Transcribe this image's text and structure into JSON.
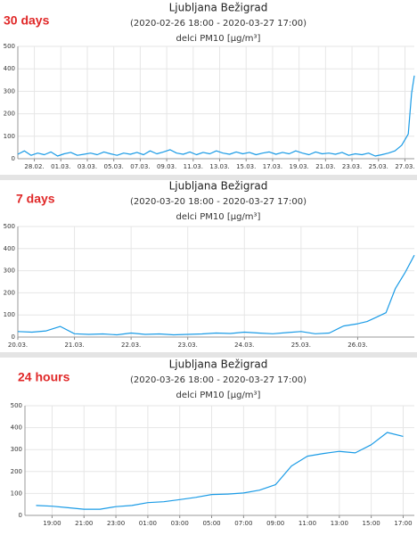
{
  "chart_data": [
    {
      "type": "line",
      "period_label": "30 days",
      "title": "Ljubljana Bežigrad",
      "subtitle": "(2020-02-26 18:00 - 2020-03-27 17:00)",
      "unit": "delci PM10 [µg/m³]",
      "color": "#1a9be6",
      "grid": true,
      "x": [
        0,
        12,
        24,
        36,
        48,
        60,
        72,
        84,
        96,
        108,
        120,
        132,
        144,
        156,
        168,
        180,
        192,
        204,
        216,
        228,
        240,
        252,
        264,
        276,
        288,
        300,
        312,
        324,
        336,
        348,
        360,
        372,
        384,
        396,
        408,
        420,
        432,
        444,
        456,
        468,
        480,
        492,
        504,
        516,
        528,
        540,
        552,
        564,
        576,
        588,
        600,
        612,
        624,
        636,
        648,
        660,
        672,
        684,
        696,
        708,
        714,
        719
      ],
      "values": [
        20,
        35,
        15,
        25,
        18,
        30,
        12,
        22,
        28,
        15,
        20,
        25,
        18,
        30,
        22,
        15,
        25,
        20,
        28,
        18,
        35,
        22,
        30,
        40,
        25,
        20,
        30,
        18,
        28,
        22,
        35,
        25,
        20,
        30,
        22,
        28,
        18,
        25,
        30,
        20,
        28,
        22,
        35,
        25,
        18,
        30,
        22,
        25,
        20,
        28,
        15,
        22,
        18,
        25,
        12,
        18,
        25,
        35,
        60,
        110,
        290,
        370
      ],
      "xlim": [
        0,
        719
      ],
      "xticks": [
        {
          "value": 30,
          "label": "28.02."
        },
        {
          "value": 78,
          "label": "01.03."
        },
        {
          "value": 126,
          "label": "03.03."
        },
        {
          "value": 174,
          "label": "05.03."
        },
        {
          "value": 222,
          "label": "07.03."
        },
        {
          "value": 270,
          "label": "09.03."
        },
        {
          "value": 318,
          "label": "11.03."
        },
        {
          "value": 366,
          "label": "13.03."
        },
        {
          "value": 414,
          "label": "15.03."
        },
        {
          "value": 462,
          "label": "17.03."
        },
        {
          "value": 510,
          "label": "19.03."
        },
        {
          "value": 558,
          "label": "21.03."
        },
        {
          "value": 606,
          "label": "23.03."
        },
        {
          "value": 654,
          "label": "25.03."
        },
        {
          "value": 702,
          "label": "27.03."
        }
      ],
      "ylim": [
        0,
        500
      ],
      "yticks": [
        0,
        100,
        200,
        300,
        400,
        500
      ]
    },
    {
      "type": "line",
      "period_label": "7 days",
      "title": "Ljubljana Bežigrad",
      "subtitle": "(2020-03-20 18:00 - 2020-03-27 17:00)",
      "unit": "delci PM10 [µg/m³]",
      "color": "#1a9be6",
      "grid": true,
      "x": [
        0,
        6,
        12,
        18,
        24,
        30,
        36,
        42,
        48,
        54,
        60,
        66,
        72,
        78,
        84,
        90,
        96,
        102,
        108,
        114,
        120,
        126,
        132,
        138,
        144,
        148,
        152,
        156,
        160,
        164,
        168
      ],
      "values": [
        25,
        22,
        28,
        48,
        15,
        12,
        14,
        10,
        18,
        12,
        14,
        10,
        12,
        14,
        18,
        16,
        22,
        18,
        15,
        20,
        25,
        15,
        18,
        50,
        60,
        70,
        90,
        110,
        220,
        290,
        370
      ],
      "xlim": [
        0,
        168
      ],
      "xticks": [
        {
          "value": 0,
          "label": "20.03."
        },
        {
          "value": 24,
          "label": "21.03."
        },
        {
          "value": 48,
          "label": "22.03."
        },
        {
          "value": 72,
          "label": "23.03."
        },
        {
          "value": 96,
          "label": "24.03."
        },
        {
          "value": 120,
          "label": "25.03."
        },
        {
          "value": 144,
          "label": "26.03."
        }
      ],
      "ylim": [
        0,
        500
      ],
      "yticks": [
        0,
        100,
        200,
        300,
        400,
        500
      ]
    },
    {
      "type": "line",
      "period_label": "24 hours",
      "title": "Ljubljana Bežigrad",
      "subtitle": "(2020-03-26 18:00 - 2020-03-27 17:00)",
      "unit": "delci PM10 [µg/m³]",
      "color": "#1a9be6",
      "grid": true,
      "x": [
        0,
        1,
        2,
        3,
        4,
        5,
        6,
        7,
        8,
        9,
        10,
        11,
        12,
        13,
        14,
        15,
        16,
        17,
        18,
        19,
        20,
        21,
        22,
        23
      ],
      "values": [
        45,
        42,
        35,
        28,
        28,
        40,
        45,
        58,
        62,
        72,
        82,
        95,
        97,
        102,
        115,
        140,
        225,
        270,
        282,
        292,
        285,
        322,
        378,
        360
      ],
      "xlim": [
        -0.7,
        23.7
      ],
      "xticks": [
        {
          "value": 1,
          "label": "19:00"
        },
        {
          "value": 3,
          "label": "21:00"
        },
        {
          "value": 5,
          "label": "23:00"
        },
        {
          "value": 7,
          "label": "01:00"
        },
        {
          "value": 9,
          "label": "03:00"
        },
        {
          "value": 11,
          "label": "05:00"
        },
        {
          "value": 13,
          "label": "07:00"
        },
        {
          "value": 15,
          "label": "09:00"
        },
        {
          "value": 17,
          "label": "11:00"
        },
        {
          "value": 19,
          "label": "13:00"
        },
        {
          "value": 21,
          "label": "15:00"
        },
        {
          "value": 23,
          "label": "17:00"
        }
      ],
      "ylim": [
        0,
        500
      ],
      "yticks": [
        0,
        100,
        200,
        300,
        400,
        500
      ]
    }
  ]
}
